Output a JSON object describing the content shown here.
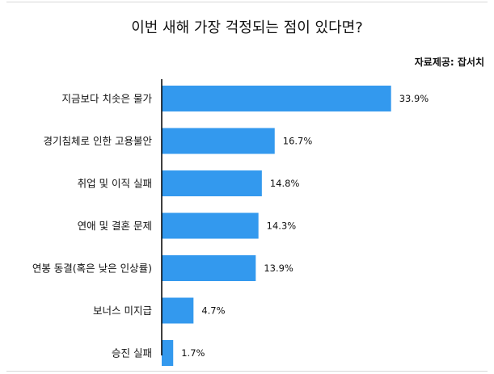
{
  "chart_data": {
    "type": "bar",
    "orientation": "horizontal",
    "title": "이번 새해 가장 걱정되는 점이 있다면?",
    "source": "자료제공: 잡서치",
    "categories": [
      "지금보다 치솟은 물가",
      "경기침체로 인한 고용불안",
      "취업 및 이직 실패",
      "연애 및 결혼 문제",
      "연봉 동결(혹은 낮은 인상률)",
      "보너스 미지급",
      "승진 실패"
    ],
    "values": [
      33.9,
      16.7,
      14.8,
      14.3,
      13.9,
      4.7,
      1.7
    ],
    "value_labels": [
      "33.9%",
      "16.7%",
      "14.8%",
      "14.3%",
      "13.9%",
      "4.7%",
      "1.7%"
    ],
    "unit": "%",
    "xlim": [
      0,
      38
    ],
    "bar_color": "#3399ee",
    "grid": false,
    "legend": "none"
  }
}
